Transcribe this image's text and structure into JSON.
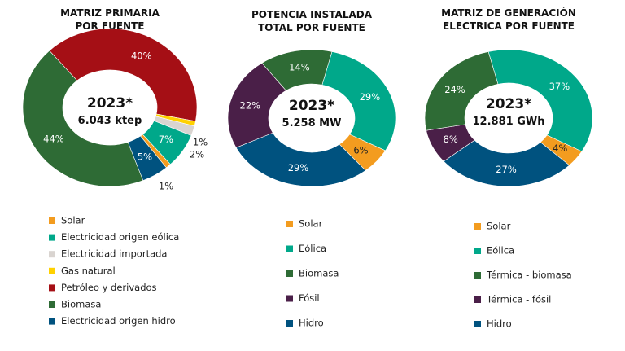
{
  "chart_data": [
    {
      "type": "pie",
      "title": [
        "MATRIZ PRIMARIA",
        "POR FUENTE"
      ],
      "center_text": [
        "2023*",
        "6.043 ktep"
      ],
      "categories": [
        "Petróleo y derivados",
        "Gas natural",
        "Electricidad importada",
        "Electricidad origen eólica",
        "Solar",
        "Electricidad origen hidro",
        "Biomasa"
      ],
      "values": [
        40,
        1,
        2,
        7,
        1,
        5,
        44
      ],
      "labels": [
        "40%",
        "1%",
        "2%",
        "7%",
        "1%",
        "5%",
        "44%"
      ],
      "colors": [
        "#a50f15",
        "#ffd100",
        "#d9d4d0",
        "#00a88a",
        "#f39c1f",
        "#00527f",
        "#2e6b35"
      ],
      "legend": [
        "Solar",
        "Electricidad origen eólica",
        "Electricidad importada",
        "Gas natural",
        "Petróleo y derivados",
        "Biomasa",
        "Electricidad origen hidro"
      ],
      "legend_colors": [
        "#f39c1f",
        "#00a88a",
        "#d9d4d0",
        "#ffd100",
        "#a50f15",
        "#2e6b35",
        "#00527f"
      ],
      "legend_placement": "bottom"
    },
    {
      "type": "pie",
      "title": [
        "POTENCIA INSTALADA",
        "TOTAL POR FUENTE"
      ],
      "center_text": [
        "2023*",
        "5.258 MW"
      ],
      "categories": [
        "Eólica",
        "Solar",
        "Hidro",
        "Fósil",
        "Biomasa"
      ],
      "values": [
        29,
        6,
        29,
        22,
        14
      ],
      "labels": [
        "29%",
        "6%",
        "29%",
        "22%",
        "14%"
      ],
      "colors": [
        "#00a88a",
        "#f39c1f",
        "#00527f",
        "#4a1f48",
        "#2e6b35"
      ],
      "legend": [
        "Solar",
        "Eólica",
        "Biomasa",
        "Fósil",
        "Hidro"
      ],
      "legend_colors": [
        "#f39c1f",
        "#00a88a",
        "#2e6b35",
        "#4a1f48",
        "#00527f"
      ],
      "legend_placement": "bottom"
    },
    {
      "type": "pie",
      "title": [
        "MATRIZ DE GENERACIÓN",
        "ELECTRICA POR FUENTE"
      ],
      "center_text": [
        "2023*",
        "12.881 GWh"
      ],
      "categories": [
        "Eólica",
        "Solar",
        "Hidro",
        "Térmica - fósil",
        "Térmica - biomasa"
      ],
      "values": [
        37,
        4,
        27,
        8,
        24
      ],
      "labels": [
        "37%",
        "4%",
        "27%",
        "8%",
        "24%"
      ],
      "colors": [
        "#00a88a",
        "#f39c1f",
        "#00527f",
        "#4a1f48",
        "#2e6b35"
      ],
      "legend": [
        "Solar",
        "Eólica",
        "Térmica - biomasa",
        "Térmica - fósil",
        "Hidro"
      ],
      "legend_colors": [
        "#f39c1f",
        "#00a88a",
        "#2e6b35",
        "#4a1f48",
        "#00527f"
      ],
      "legend_placement": "bottom"
    }
  ]
}
